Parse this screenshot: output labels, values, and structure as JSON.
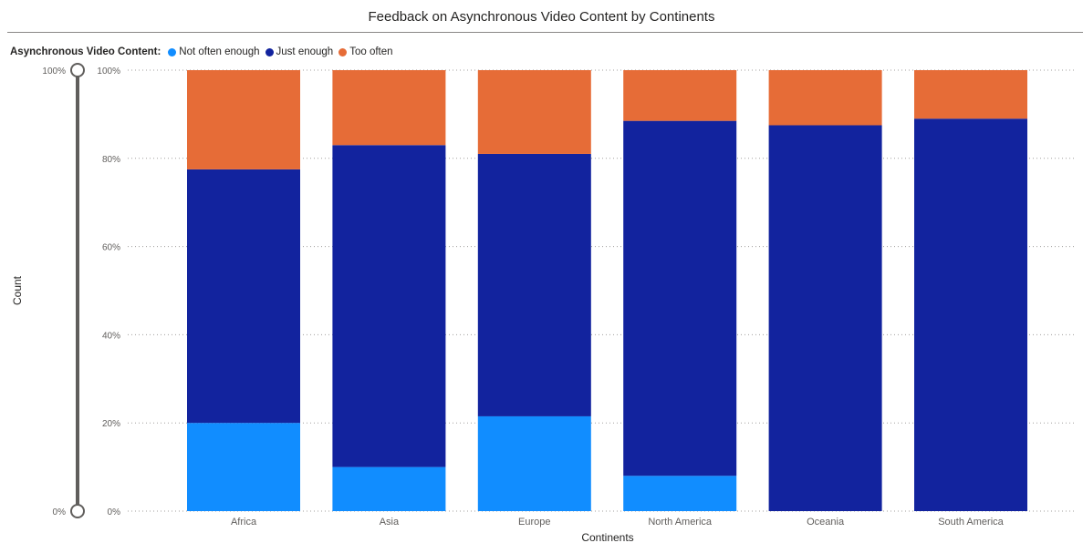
{
  "title": "Feedback on Asynchronous Video Content by Continents",
  "legend": {
    "title": "Asynchronous Video Content:",
    "items": [
      {
        "name": "Not often enough",
        "color": "#118DFF"
      },
      {
        "name": "Just enough",
        "color": "#12239E"
      },
      {
        "name": "Too often",
        "color": "#E66C37"
      }
    ]
  },
  "slider": {
    "top_label": "100%",
    "bottom_label": "0%"
  },
  "chart_data": {
    "type": "bar",
    "stacked": "100%",
    "title": "Feedback on Asynchronous Video Content by Continents",
    "xlabel": "Continents",
    "ylabel": "Count",
    "ylim": [
      0,
      100
    ],
    "y_ticks": [
      "0%",
      "20%",
      "40%",
      "60%",
      "80%",
      "100%"
    ],
    "grid": true,
    "legend_position": "top-left",
    "categories": [
      "Africa",
      "Asia",
      "Europe",
      "North America",
      "Oceania",
      "South America"
    ],
    "series": [
      {
        "name": "Not often enough",
        "color": "#118DFF",
        "values": [
          20,
          10,
          21.5,
          8,
          0,
          0
        ]
      },
      {
        "name": "Just enough",
        "color": "#12239E",
        "values": [
          57.5,
          73,
          59.5,
          80.5,
          87.5,
          89
        ]
      },
      {
        "name": "Too often",
        "color": "#E66C37",
        "values": [
          22.5,
          17,
          19,
          11.5,
          12.5,
          11
        ]
      }
    ]
  }
}
